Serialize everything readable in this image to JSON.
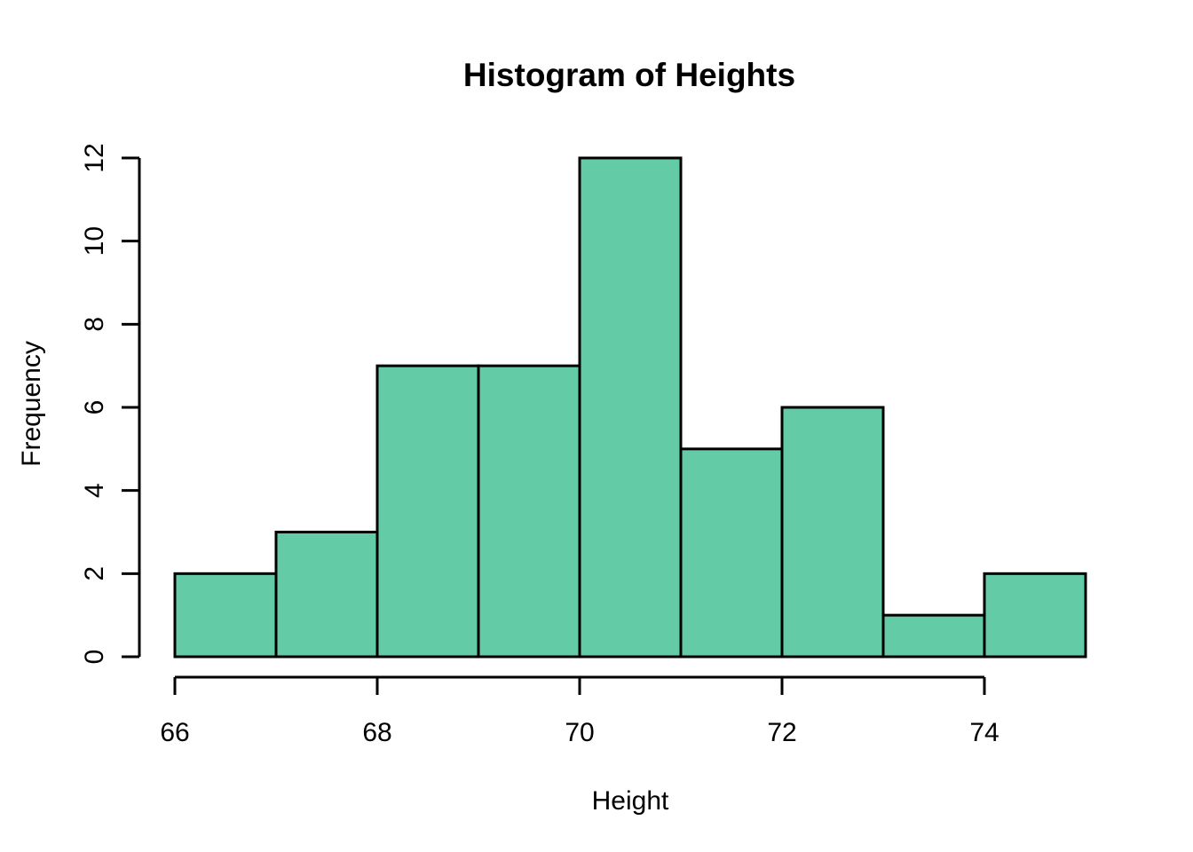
{
  "chart_data": {
    "type": "bar",
    "subtype": "histogram",
    "title": "Histogram of Heights",
    "xlabel": "Height",
    "ylabel": "Frequency",
    "bin_edges": [
      66,
      67,
      68,
      69,
      70,
      71,
      72,
      73,
      74,
      75
    ],
    "counts": [
      2,
      3,
      7,
      7,
      12,
      5,
      6,
      1,
      2
    ],
    "x_ticks": [
      66,
      68,
      70,
      72,
      74
    ],
    "y_ticks": [
      0,
      2,
      4,
      6,
      8,
      10,
      12
    ],
    "xlim": [
      66,
      75
    ],
    "ylim": [
      0,
      12
    ],
    "grid": false,
    "legend": false,
    "colors": {
      "bar_fill": "#63CBA5",
      "bar_border": "#000000",
      "axis": "#000000",
      "text": "#000000",
      "background": "#FFFFFF"
    }
  }
}
